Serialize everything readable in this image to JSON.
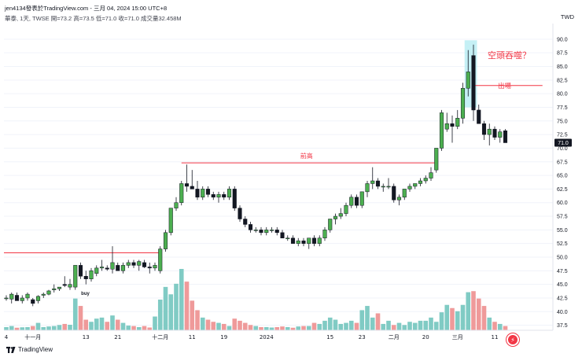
{
  "header": {
    "publisher": "jen4134發表於TradingView.com - 三月 04, 2024 15:00 UTC+8",
    "symbol_info": "華泰, 1天, TWSE  開=73.2  高=73.5  低=71.0  收=71.0  成交量32.458M",
    "currency": "TWD"
  },
  "footer": {
    "logo_text": "TradingView"
  },
  "colors": {
    "up": "#4caf50",
    "down": "#131722",
    "vol_up": "#80cbc4",
    "vol_down": "#ef9a9a",
    "line": "#f23645",
    "highlight": "#b2ebf2",
    "text": "#131722"
  },
  "chart_data": {
    "type": "candlestick",
    "ylim": [
      36,
      92
    ],
    "y_ticks": [
      "90.0",
      "87.5",
      "85.0",
      "82.5",
      "80.0",
      "77.5",
      "75.0",
      "72.5",
      "70.0",
      "67.5",
      "65.0",
      "62.5",
      "60.0",
      "57.5",
      "55.0",
      "52.5",
      "50.0",
      "47.5",
      "45.0",
      "42.5",
      "40.0",
      "37.5"
    ],
    "x_ticks": [
      {
        "label": "4",
        "idx": 0
      },
      {
        "label": "十一月",
        "idx": 5
      },
      {
        "label": "13",
        "idx": 15
      },
      {
        "label": "21",
        "idx": 21
      },
      {
        "label": "十二月",
        "idx": 29
      },
      {
        "label": "11",
        "idx": 35
      },
      {
        "label": "19",
        "idx": 41
      },
      {
        "label": "2024",
        "idx": 49
      },
      {
        "label": "15",
        "idx": 61
      },
      {
        "label": "23",
        "idx": 67
      },
      {
        "label": "二月",
        "idx": 73
      },
      {
        "label": "20",
        "idx": 79
      },
      {
        "label": "三月",
        "idx": 85
      },
      {
        "label": "11",
        "idx": 92
      }
    ],
    "last_price": "71.0",
    "ohlc": [
      [
        42.5,
        43.0,
        42.0,
        42.5
      ],
      [
        42.3,
        43.5,
        41.5,
        43.2
      ],
      [
        43.0,
        43.5,
        42.5,
        42.0
      ],
      [
        42.0,
        43.0,
        41.5,
        42.5
      ],
      [
        42.5,
        43.5,
        42.0,
        43.2
      ],
      [
        42.2,
        42.5,
        41.0,
        41.5
      ],
      [
        42.0,
        43.0,
        41.5,
        42.8
      ],
      [
        43.0,
        43.5,
        42.5,
        43.2
      ],
      [
        43.2,
        44.0,
        43.0,
        43.8
      ],
      [
        44.0,
        45.0,
        43.5,
        44.2
      ],
      [
        44.2,
        44.5,
        43.8,
        44.5
      ],
      [
        45.0,
        46.5,
        44.5,
        44.8
      ],
      [
        44.5,
        46.0,
        44.0,
        45.0
      ],
      [
        44.5,
        48.5,
        44.0,
        48.5
      ],
      [
        48.5,
        49.0,
        46.0,
        46.5
      ],
      [
        46.5,
        47.5,
        45.0,
        46.0
      ],
      [
        46.0,
        48.0,
        45.5,
        47.5
      ],
      [
        47.0,
        48.5,
        46.5,
        48.0
      ],
      [
        48.0,
        49.5,
        47.5,
        48.2
      ],
      [
        48.0,
        48.5,
        47.5,
        47.8
      ],
      [
        47.8,
        52.0,
        47.0,
        49.0
      ],
      [
        48.5,
        49.0,
        47.5,
        47.5
      ],
      [
        47.5,
        49.0,
        47.0,
        48.5
      ],
      [
        48.5,
        49.5,
        48.0,
        49.0
      ],
      [
        49.0,
        49.5,
        48.0,
        48.5
      ],
      [
        48.5,
        49.5,
        47.5,
        49.2
      ],
      [
        49.0,
        49.5,
        48.0,
        48.2
      ],
      [
        48.2,
        49.0,
        47.0,
        48.0
      ],
      [
        48.0,
        49.0,
        47.5,
        48.5
      ],
      [
        47.5,
        52.0,
        47.0,
        51.5
      ],
      [
        51.5,
        55.0,
        51.0,
        54.5
      ],
      [
        54.5,
        59.0,
        54.0,
        59.0
      ],
      [
        59.0,
        61.0,
        58.5,
        60.0
      ],
      [
        60.0,
        64.0,
        59.5,
        63.5
      ],
      [
        63.5,
        67.0,
        62.0,
        63.0
      ],
      [
        63.0,
        66.0,
        62.5,
        62.5
      ],
      [
        62.5,
        64.0,
        60.5,
        61.0
      ],
      [
        61.0,
        63.0,
        60.5,
        62.5
      ],
      [
        62.5,
        63.0,
        61.0,
        61.5
      ],
      [
        61.5,
        62.0,
        60.5,
        61.0
      ],
      [
        61.0,
        62.0,
        60.0,
        61.5
      ],
      [
        61.5,
        62.0,
        60.5,
        61.0
      ],
      [
        61.0,
        63.0,
        60.5,
        62.5
      ],
      [
        62.5,
        63.0,
        58.5,
        59.0
      ],
      [
        59.0,
        59.5,
        56.5,
        57.0
      ],
      [
        57.0,
        57.5,
        55.5,
        56.0
      ],
      [
        56.0,
        56.5,
        54.5,
        55.0
      ],
      [
        55.0,
        55.5,
        54.5,
        55.0
      ],
      [
        55.0,
        55.5,
        54.0,
        54.5
      ],
      [
        54.5,
        55.5,
        54.0,
        55.0
      ],
      [
        55.0,
        55.5,
        54.5,
        55.0
      ],
      [
        55.0,
        55.5,
        54.0,
        54.5
      ],
      [
        54.5,
        55.0,
        53.5,
        53.5
      ],
      [
        53.5,
        54.0,
        53.0,
        53.5
      ],
      [
        53.5,
        54.0,
        52.5,
        52.5
      ],
      [
        52.5,
        53.5,
        52.0,
        53.0
      ],
      [
        53.0,
        53.5,
        52.0,
        52.5
      ],
      [
        52.5,
        53.5,
        51.5,
        53.5
      ],
      [
        53.5,
        54.0,
        52.0,
        52.5
      ],
      [
        52.5,
        54.0,
        52.0,
        53.5
      ],
      [
        53.5,
        55.5,
        53.0,
        55.0
      ],
      [
        55.0,
        57.0,
        54.5,
        57.0
      ],
      [
        57.0,
        58.0,
        56.0,
        57.5
      ],
      [
        57.5,
        59.0,
        57.0,
        58.0
      ],
      [
        58.0,
        60.0,
        57.5,
        59.5
      ],
      [
        59.5,
        61.5,
        59.0,
        61.0
      ],
      [
        61.0,
        61.5,
        59.0,
        59.5
      ],
      [
        59.5,
        62.0,
        59.0,
        62.0
      ],
      [
        62.0,
        64.0,
        61.0,
        63.5
      ],
      [
        63.5,
        66.5,
        62.5,
        64.0
      ],
      [
        64.0,
        64.5,
        62.5,
        63.0
      ],
      [
        63.0,
        63.5,
        62.0,
        63.0
      ],
      [
        63.0,
        64.5,
        62.5,
        63.0
      ],
      [
        63.0,
        63.5,
        60.0,
        60.5
      ],
      [
        60.5,
        61.5,
        59.5,
        61.0
      ],
      [
        61.0,
        62.5,
        60.5,
        62.5
      ],
      [
        62.5,
        63.5,
        62.0,
        63.0
      ],
      [
        63.0,
        63.5,
        62.5,
        63.5
      ],
      [
        63.5,
        64.5,
        63.0,
        64.0
      ],
      [
        64.0,
        65.0,
        63.5,
        64.5
      ],
      [
        64.5,
        66.5,
        64.0,
        65.5
      ],
      [
        66.0,
        70.0,
        65.5,
        70.0
      ],
      [
        70.0,
        77.0,
        69.5,
        76.5
      ],
      [
        73.5,
        76.5,
        73.0,
        74.5
      ],
      [
        74.5,
        76.0,
        71.0,
        74.0
      ],
      [
        74.0,
        77.0,
        73.5,
        75.5
      ],
      [
        75.5,
        82.0,
        74.5,
        81.0
      ],
      [
        81.0,
        88.0,
        79.5,
        84.0
      ],
      [
        87.0,
        89.0,
        75.0,
        77.0
      ],
      [
        77.0,
        78.0,
        74.5,
        74.5
      ],
      [
        74.5,
        75.0,
        71.5,
        72.5
      ],
      [
        72.5,
        74.5,
        70.5,
        73.5
      ],
      [
        73.5,
        74.0,
        71.5,
        72.0
      ],
      [
        72.0,
        73.5,
        71.0,
        73.0
      ],
      [
        73.2,
        73.5,
        71.0,
        71.0
      ]
    ],
    "volume": [
      1.5,
      2.0,
      1.2,
      1.4,
      1.5,
      2.0,
      3.5,
      1.5,
      1.8,
      2.0,
      2.5,
      3.0,
      2.6,
      15.0,
      11.5,
      5.0,
      4.0,
      5.5,
      6.0,
      4.0,
      7.0,
      5.0,
      3.5,
      2.2,
      2.0,
      1.5,
      2.0,
      1.3,
      6.5,
      14.5,
      20.5,
      17.0,
      22.0,
      29.0,
      23.0,
      14.0,
      9.5,
      6.0,
      5.0,
      4.0,
      3.5,
      3.0,
      2.0,
      5.5,
      4.5,
      3.5,
      2.5,
      2.0,
      1.5,
      1.5,
      1.3,
      1.5,
      1.8,
      1.5,
      1.2,
      1.8,
      2.0,
      2.0,
      3.5,
      3.0,
      4.5,
      6.0,
      5.0,
      3.0,
      3.5,
      4.5,
      3.5,
      9.5,
      11.5,
      6.0,
      8.0,
      3.0,
      4.5,
      2.5,
      3.5,
      2.5,
      4.0,
      3.5,
      4.5,
      4.5,
      6.0,
      4.0,
      8.5,
      12.0,
      10.5,
      9.0,
      12.0,
      18.0,
      18.5,
      15.0,
      11.5,
      6.0,
      4.0,
      3.0,
      2.0
    ],
    "annotations": [
      {
        "text": "buy",
        "idx": 14
      },
      {
        "text": "前高"
      },
      {
        "text": "出場"
      },
      {
        "text": "空頭吞噬？"
      }
    ],
    "levels": [
      {
        "price": 50.8,
        "from_idx": 0,
        "to_idx": 29
      },
      {
        "price": 67.3,
        "from_idx": 33,
        "to_idx": 81
      },
      {
        "price": 81.5,
        "from_idx": 88,
        "to_idx": 101
      }
    ]
  }
}
